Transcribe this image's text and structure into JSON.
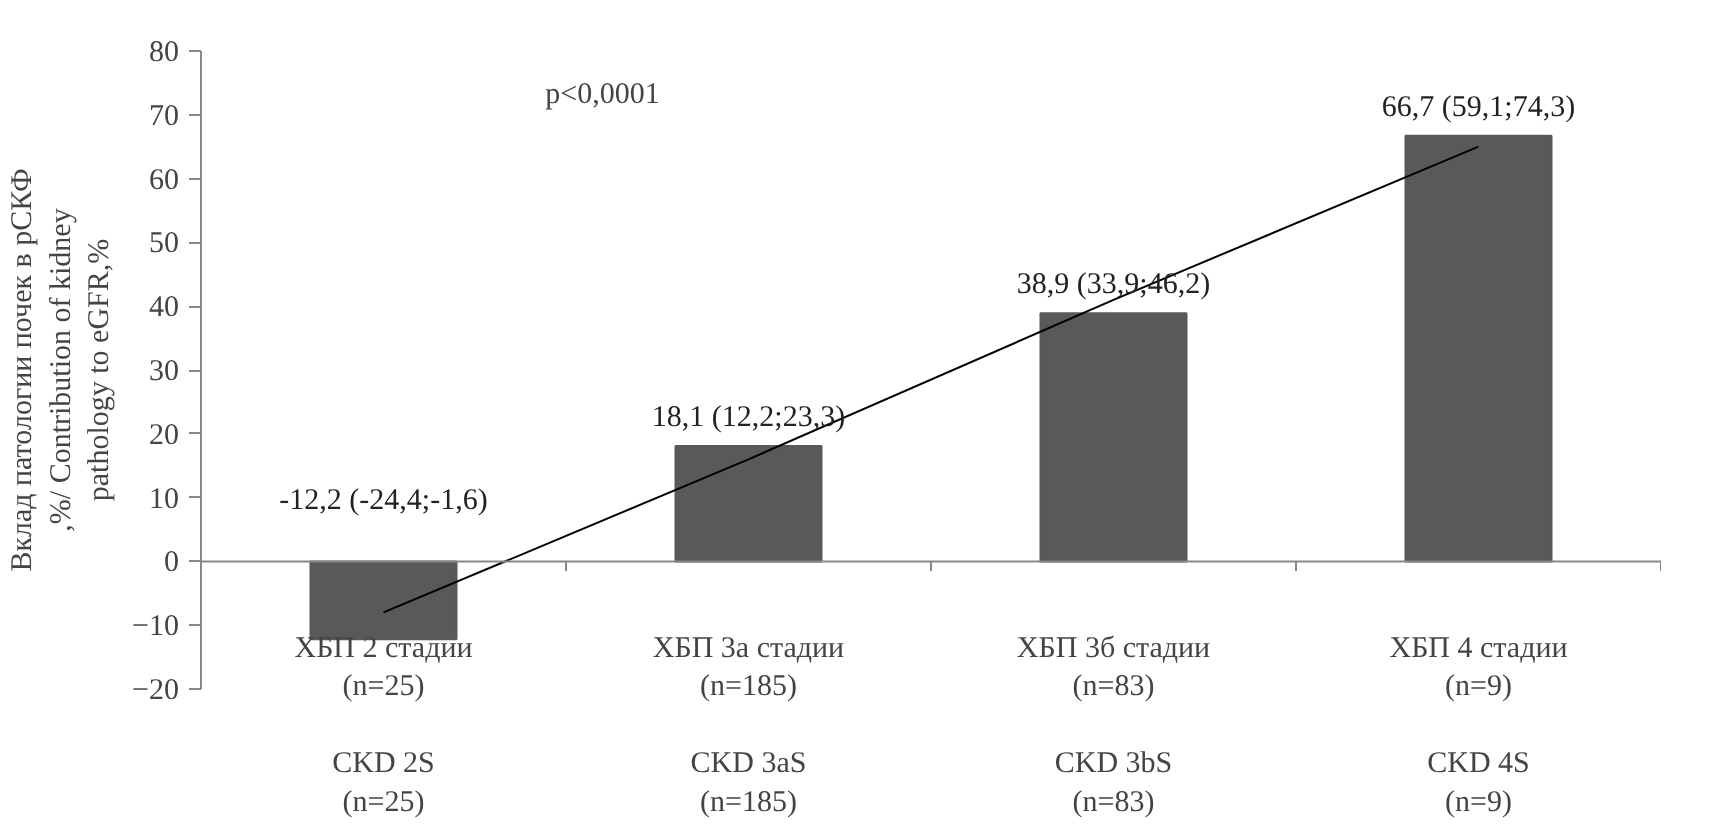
{
  "chart_data": {
    "type": "bar",
    "ylabel": "Вклад патологии почек в рСКФ\n,%/ Contribution of kidney\npathology to eGFR,%",
    "categories": [
      "ХБП 2 стадии\n(n=25)\n\nCKD 2S\n(n=25)",
      "ХБП 3а стадии\n(n=185)\n\nCKD 3aS\n(n=185)",
      "ХБП 3б стадии\n(n=83)\n\nCKD 3bS\n(n=83)",
      "ХБП 4 стадии\n(n=9)\n\nCKD 4S\n(n=9)"
    ],
    "series": [
      {
        "color": "#595959",
        "values": [
          -12.2,
          18.1,
          38.9,
          66.7
        ],
        "value_labels": [
          "-12,2 (-24,4;-1,6)",
          "18,1 (12,2;23,3)",
          "38,9 (33,9;46,2)",
          "66,7 (59,1;74,3)"
        ]
      },
      {
        "type": "line",
        "color": "#000000",
        "values": [
          -8,
          16,
          41,
          65
        ]
      }
    ],
    "ylim": [
      -20,
      80
    ],
    "yticks": [
      -20,
      -10,
      0,
      10,
      20,
      30,
      40,
      50,
      60,
      70,
      80
    ],
    "annotations": [
      "p<0,0001"
    ]
  }
}
